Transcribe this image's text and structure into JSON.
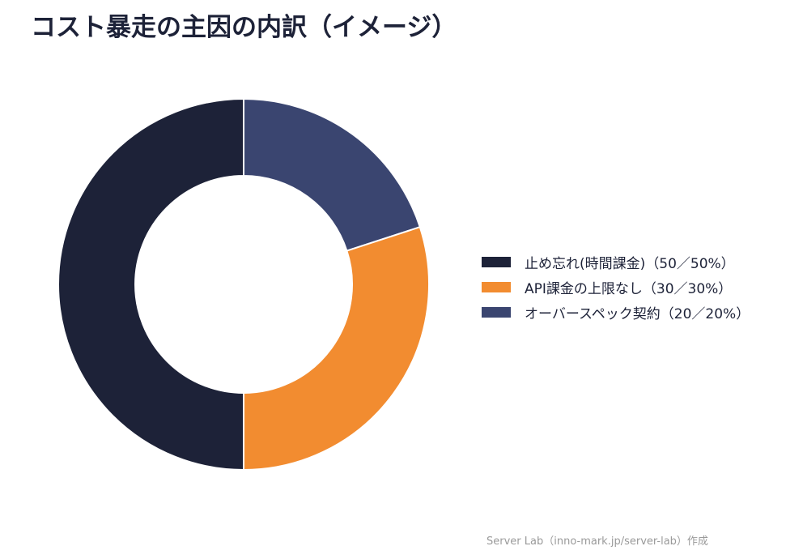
{
  "chart_data": {
    "type": "pie",
    "title": "コスト暴走の主因の内訳（イメージ）",
    "donut": true,
    "start_angle_deg": 90,
    "direction": "clockwise",
    "legend_position": "right",
    "categories": [
      "オーバースペック契約（20／20%）",
      "API課金の上限なし（30／30%）",
      "止め忘れ(時間課金)（50／50%）"
    ],
    "values": [
      20,
      30,
      50
    ],
    "colors": [
      "#3a4570",
      "#f28c30",
      "#1d2238"
    ],
    "legend_order": [
      2,
      1,
      0
    ]
  },
  "footer": "Server Lab（inno-mark.jp/server-lab）作成"
}
